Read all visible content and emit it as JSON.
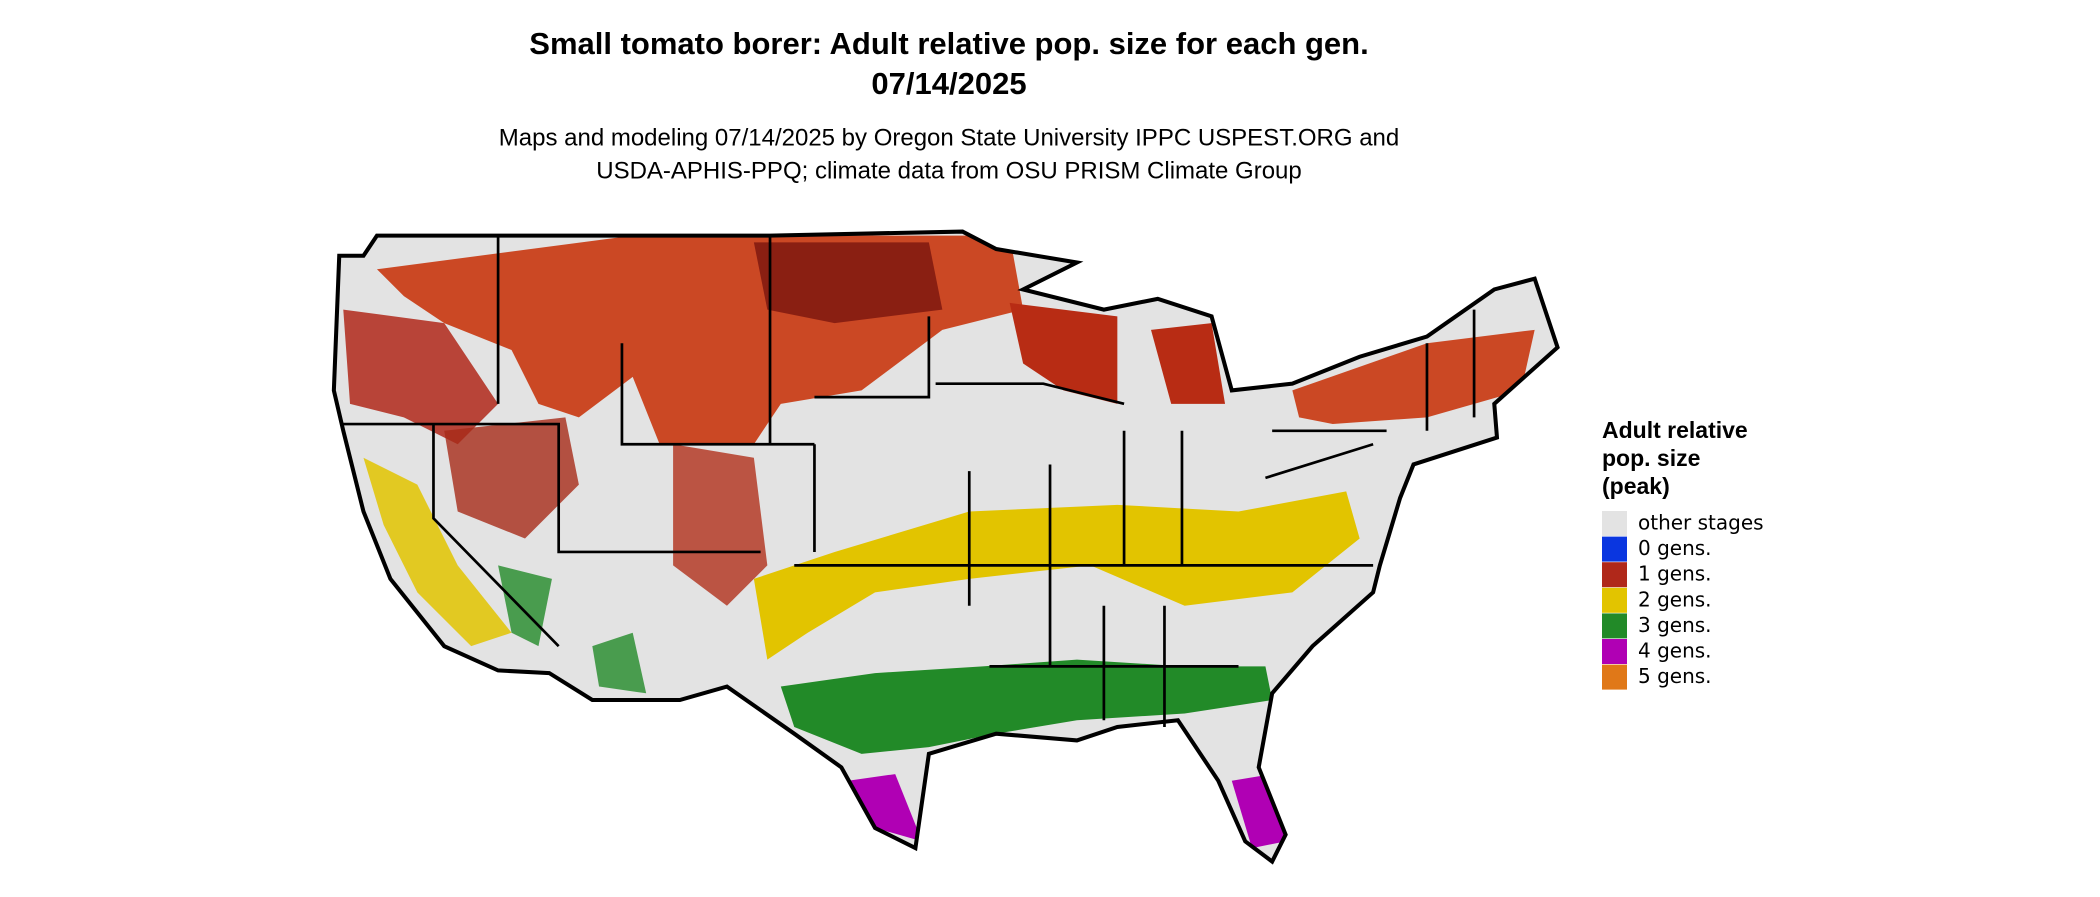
{
  "header": {
    "title": [
      "Small tomato borer: Adult relative pop. size for each gen.",
      "07/14/2025"
    ],
    "subtitle": [
      "Maps and modeling 07/14/2025 by Oregon State University IPPC USPEST.ORG and",
      "USDA-APHIS-PPQ; climate data from OSU PRISM Climate Group"
    ]
  },
  "legend": {
    "title": [
      "Adult relative",
      "pop. size",
      "(peak)"
    ],
    "items": [
      {
        "label": "other stages",
        "color": "#e3e3e3"
      },
      {
        "label": "0 gens.",
        "color": "#0a36e0"
      },
      {
        "label": "1 gens.",
        "color": "#b0281a"
      },
      {
        "label": "2 gens.",
        "color": "#e2c400"
      },
      {
        "label": "3 gens.",
        "color": "#228a28"
      },
      {
        "label": "4 gens.",
        "color": "#b000b4"
      },
      {
        "label": "5 gens.",
        "color": "#e07818"
      }
    ]
  }
}
